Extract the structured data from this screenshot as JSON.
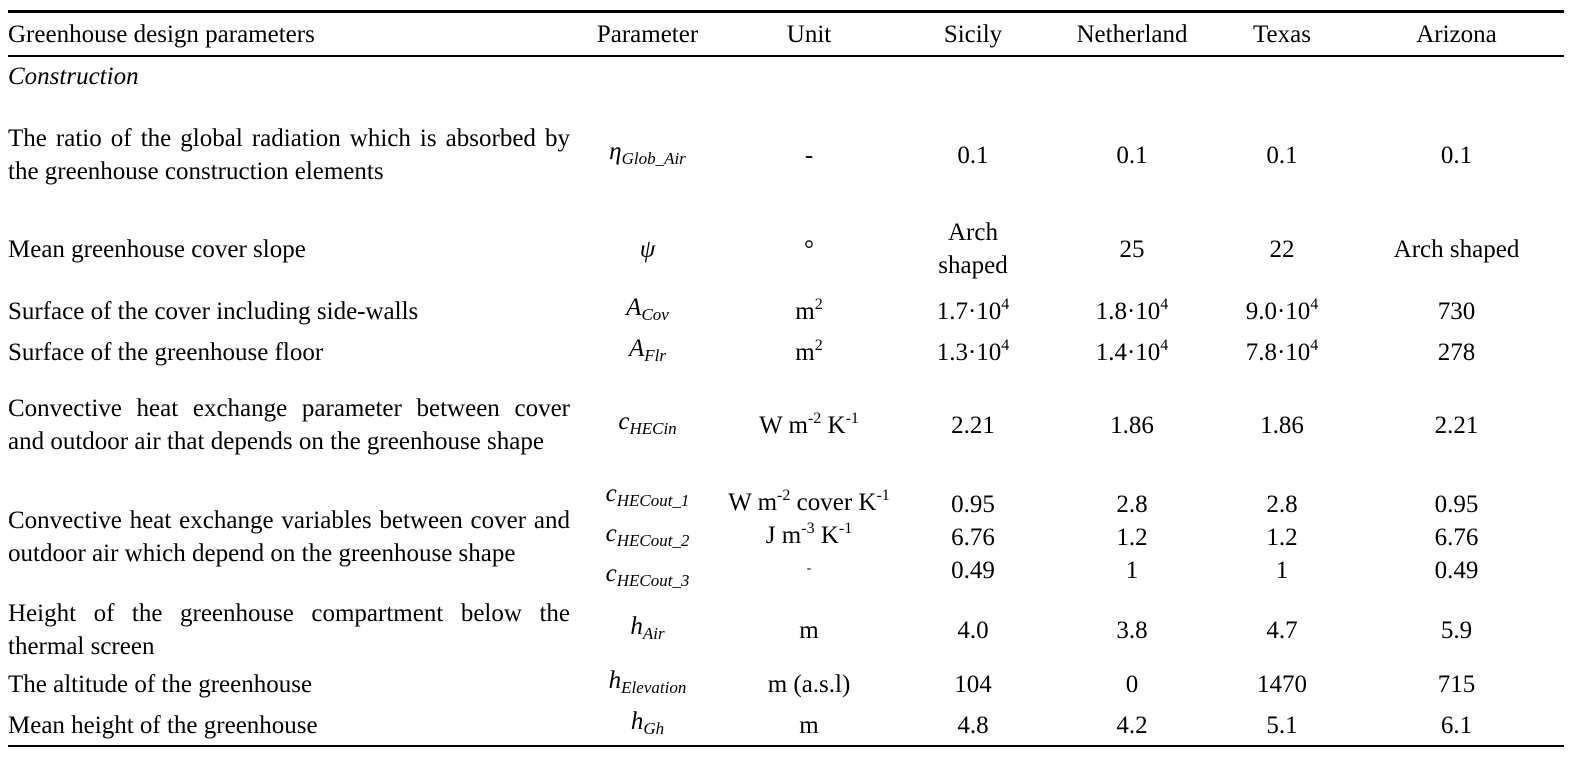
{
  "headers": {
    "description": "Greenhouse design parameters",
    "parameter": "Parameter",
    "unit": "Unit",
    "sicily": "Sicily",
    "netherland": "Netherland",
    "texas": "Texas",
    "arizona": "Arizona"
  },
  "section": "Construction",
  "rows": {
    "glob": {
      "description": "The ratio of the global radiation which is absorbed by the greenhouse construction elements",
      "symbol_main": "η",
      "symbol_sub": "Glob_Air",
      "unit": "-",
      "sicily": "0.1",
      "netherland": "0.1",
      "texas": "0.1",
      "arizona": "0.1"
    },
    "slope": {
      "description": "Mean greenhouse cover slope",
      "symbol_main": "ψ",
      "unit": "°",
      "sicily_line1": "Arch",
      "sicily_line2": "shaped",
      "netherland": "25",
      "texas": "22",
      "arizona": "Arch shaped"
    },
    "cov": {
      "description": "Surface of the cover including side-walls",
      "symbol_main": "A",
      "symbol_sub": "Cov",
      "unit_base": "m",
      "unit_exp": "2",
      "sicily_mant": "1.7·10",
      "sicily_exp": "4",
      "netherland_mant": "1.8·10",
      "netherland_exp": "4",
      "texas_mant": "9.0·10",
      "texas_exp": "4",
      "arizona": "730"
    },
    "flr": {
      "description": "Surface of the greenhouse floor",
      "symbol_main": "A",
      "symbol_sub": "Flr",
      "unit_base": "m",
      "unit_exp": "2",
      "sicily_mant": "1.3·10",
      "sicily_exp": "4",
      "netherland_mant": "1.4·10",
      "netherland_exp": "4",
      "texas_mant": "7.8·10",
      "texas_exp": "4",
      "arizona": "278"
    },
    "hecin": {
      "description": "Convective heat exchange parameter between cover and outdoor air that depends on the greenhouse shape",
      "symbol_main": "c",
      "symbol_sub": "HECin",
      "unit_w": "W m",
      "unit_e1": "-2",
      "unit_k": " K",
      "unit_e2": "-1",
      "sicily": "2.21",
      "netherland": "1.86",
      "texas": "1.86",
      "arizona": "2.21"
    },
    "hecout": {
      "description": "Convective heat exchange variables between cover and outdoor air which depend on the greenhouse shape",
      "symbols": [
        {
          "main": "c",
          "sub": "HECout_1"
        },
        {
          "main": "c",
          "sub": "HECout_2"
        },
        {
          "main": "c",
          "sub": "HECout_3"
        }
      ],
      "unit1_a": "W m",
      "unit1_e1": "-2",
      "unit1_b": " cover K",
      "unit1_e2": "-1",
      "unit2_a": "J m",
      "unit2_e1": "-3",
      "unit2_b": " K",
      "unit2_e2": "-1",
      "unit3": "-",
      "sicily": [
        "0.95",
        "6.76",
        "0.49"
      ],
      "netherland": [
        "2.8",
        "1.2",
        "1"
      ],
      "texas": [
        "2.8",
        "1.2",
        "1"
      ],
      "arizona": [
        "0.95",
        "6.76",
        "0.49"
      ]
    },
    "hair": {
      "description": "Height of the greenhouse compartment below the thermal screen",
      "symbol_main": "h",
      "symbol_sub": "Air",
      "unit": "m",
      "sicily": "4.0",
      "netherland": "3.8",
      "texas": "4.7",
      "arizona": "5.9"
    },
    "elev": {
      "description": "The altitude of the greenhouse",
      "symbol_main": "h",
      "symbol_sub": "Elevation",
      "unit": "m (a.s.l)",
      "sicily": "104",
      "netherland": "0",
      "texas": "1470",
      "arizona": "715"
    },
    "hgh": {
      "description": "Mean height of the greenhouse",
      "symbol_main": "h",
      "symbol_sub": "Gh",
      "unit": "m",
      "sicily": "4.8",
      "netherland": "4.2",
      "texas": "5.1",
      "arizona": "6.1"
    }
  }
}
